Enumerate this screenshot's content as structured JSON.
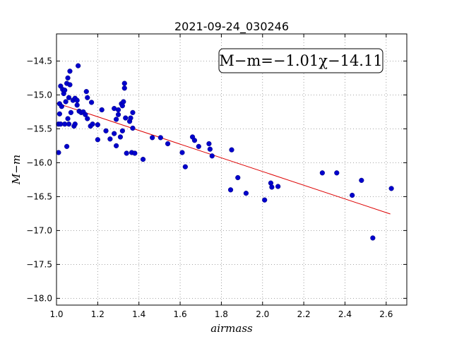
{
  "chart_data": {
    "type": "scatter",
    "title": "2021-09-24_030246",
    "xlabel": "airmass",
    "ylabel": "M−m",
    "xlim": [
      1.0,
      2.7
    ],
    "ylim": [
      -18.1,
      -14.1
    ],
    "y_inverted": true,
    "grid": true,
    "xticks": [
      1.0,
      1.2,
      1.4,
      1.6,
      1.8,
      2.0,
      2.2,
      2.4,
      2.6
    ],
    "xtick_labels": [
      "1.0",
      "1.2",
      "1.4",
      "1.6",
      "1.8",
      "2.0",
      "2.2",
      "2.4",
      "2.6"
    ],
    "yticks": [
      -14.5,
      -15.0,
      -15.5,
      -16.0,
      -16.5,
      -17.0,
      -17.5,
      -18.0
    ],
    "ytick_labels": [
      "−14.5",
      "−15.0",
      "−15.5",
      "−16.0",
      "−16.5",
      "−17.0",
      "−17.5",
      "−18.0"
    ],
    "annotation": "M−m=−1.01χ−14.11",
    "colors": {
      "points": "#0000cc",
      "fit_line": "#dd0000",
      "grid": "#888888"
    },
    "fit_line": {
      "slope": -1.01,
      "intercept": -14.11,
      "x_range": [
        1.0,
        2.62
      ]
    },
    "points": [
      {
        "x": 1.01,
        "y": -15.43
      },
      {
        "x": 1.01,
        "y": -15.85
      },
      {
        "x": 1.015,
        "y": -15.28
      },
      {
        "x": 1.015,
        "y": -15.13
      },
      {
        "x": 1.02,
        "y": -14.87
      },
      {
        "x": 1.02,
        "y": -15.43
      },
      {
        "x": 1.025,
        "y": -15.17
      },
      {
        "x": 1.03,
        "y": -14.92
      },
      {
        "x": 1.035,
        "y": -14.98
      },
      {
        "x": 1.04,
        "y": -15.43
      },
      {
        "x": 1.04,
        "y": -14.93
      },
      {
        "x": 1.045,
        "y": -15.1
      },
      {
        "x": 1.05,
        "y": -14.83
      },
      {
        "x": 1.05,
        "y": -15.76
      },
      {
        "x": 1.055,
        "y": -15.35
      },
      {
        "x": 1.055,
        "y": -14.75
      },
      {
        "x": 1.06,
        "y": -15.04
      },
      {
        "x": 1.06,
        "y": -15.43
      },
      {
        "x": 1.065,
        "y": -14.65
      },
      {
        "x": 1.065,
        "y": -14.85
      },
      {
        "x": 1.07,
        "y": -15.26
      },
      {
        "x": 1.08,
        "y": -15.08
      },
      {
        "x": 1.085,
        "y": -15.46
      },
      {
        "x": 1.09,
        "y": -15.05
      },
      {
        "x": 1.09,
        "y": -15.43
      },
      {
        "x": 1.1,
        "y": -15.15
      },
      {
        "x": 1.1,
        "y": -15.08
      },
      {
        "x": 1.105,
        "y": -14.57
      },
      {
        "x": 1.11,
        "y": -15.24
      },
      {
        "x": 1.12,
        "y": -15.26
      },
      {
        "x": 1.13,
        "y": -15.25
      },
      {
        "x": 1.14,
        "y": -15.29
      },
      {
        "x": 1.145,
        "y": -14.95
      },
      {
        "x": 1.15,
        "y": -15.04
      },
      {
        "x": 1.15,
        "y": -15.35
      },
      {
        "x": 1.165,
        "y": -15.46
      },
      {
        "x": 1.17,
        "y": -15.11
      },
      {
        "x": 1.175,
        "y": -15.43
      },
      {
        "x": 1.2,
        "y": -15.44
      },
      {
        "x": 1.2,
        "y": -15.66
      },
      {
        "x": 1.22,
        "y": -15.22
      },
      {
        "x": 1.24,
        "y": -15.53
      },
      {
        "x": 1.26,
        "y": -15.65
      },
      {
        "x": 1.28,
        "y": -15.57
      },
      {
        "x": 1.28,
        "y": -15.2
      },
      {
        "x": 1.29,
        "y": -15.75
      },
      {
        "x": 1.29,
        "y": -15.36
      },
      {
        "x": 1.3,
        "y": -15.29
      },
      {
        "x": 1.3,
        "y": -15.22
      },
      {
        "x": 1.31,
        "y": -15.62
      },
      {
        "x": 1.315,
        "y": -15.13
      },
      {
        "x": 1.32,
        "y": -15.53
      },
      {
        "x": 1.32,
        "y": -15.16
      },
      {
        "x": 1.325,
        "y": -15.1
      },
      {
        "x": 1.33,
        "y": -14.83
      },
      {
        "x": 1.33,
        "y": -14.9
      },
      {
        "x": 1.335,
        "y": -15.34
      },
      {
        "x": 1.34,
        "y": -15.86
      },
      {
        "x": 1.355,
        "y": -15.39
      },
      {
        "x": 1.36,
        "y": -15.34
      },
      {
        "x": 1.365,
        "y": -15.85
      },
      {
        "x": 1.37,
        "y": -15.49
      },
      {
        "x": 1.37,
        "y": -15.26
      },
      {
        "x": 1.38,
        "y": -15.86
      },
      {
        "x": 1.42,
        "y": -15.95
      },
      {
        "x": 1.465,
        "y": -15.63
      },
      {
        "x": 1.505,
        "y": -15.63
      },
      {
        "x": 1.54,
        "y": -15.72
      },
      {
        "x": 1.61,
        "y": -15.85
      },
      {
        "x": 1.625,
        "y": -16.06
      },
      {
        "x": 1.66,
        "y": -15.62
      },
      {
        "x": 1.67,
        "y": -15.67
      },
      {
        "x": 1.69,
        "y": -15.76
      },
      {
        "x": 1.74,
        "y": -15.72
      },
      {
        "x": 1.745,
        "y": -15.8
      },
      {
        "x": 1.755,
        "y": -15.9
      },
      {
        "x": 1.845,
        "y": -16.4
      },
      {
        "x": 1.85,
        "y": -15.81
      },
      {
        "x": 1.88,
        "y": -16.22
      },
      {
        "x": 1.92,
        "y": -16.45
      },
      {
        "x": 2.01,
        "y": -16.55
      },
      {
        "x": 2.04,
        "y": -16.3
      },
      {
        "x": 2.045,
        "y": -16.36
      },
      {
        "x": 2.075,
        "y": -16.35
      },
      {
        "x": 2.29,
        "y": -16.15
      },
      {
        "x": 2.36,
        "y": -16.15
      },
      {
        "x": 2.435,
        "y": -16.48
      },
      {
        "x": 2.48,
        "y": -16.26
      },
      {
        "x": 2.535,
        "y": -17.11
      },
      {
        "x": 2.625,
        "y": -16.38
      }
    ]
  }
}
